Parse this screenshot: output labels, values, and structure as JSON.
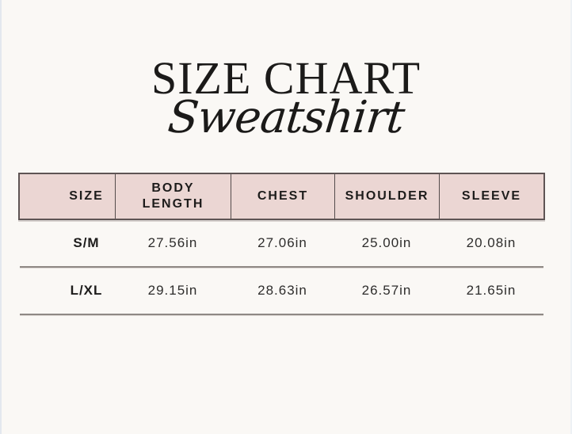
{
  "page": {
    "background": "#faf8f5"
  },
  "title": {
    "main": "SIZE CHART",
    "subtitle": "Sweatshirt"
  },
  "table": {
    "header_bg": "#ebd6d3",
    "border_color": "#5e5454",
    "headers": [
      "SIZE",
      "BODY LENGTH",
      "CHEST",
      "SHOULDER",
      "SLEEVE"
    ],
    "rows": [
      [
        "S/M",
        "27.56in",
        "27.06in",
        "25.00in",
        "20.08in"
      ],
      [
        "L/XL",
        "29.15in",
        "28.63in",
        "26.57in",
        "21.65in"
      ]
    ]
  },
  "chart_data": {
    "type": "table",
    "title": "SIZE CHART",
    "subtitle": "Sweatshirt",
    "columns": [
      "SIZE",
      "BODY LENGTH",
      "CHEST",
      "SHOULDER",
      "SLEEVE"
    ],
    "rows": [
      [
        "S/M",
        "27.56in",
        "27.06in",
        "25.00in",
        "20.08in"
      ],
      [
        "L/XL",
        "29.15in",
        "28.63in",
        "26.57in",
        "21.65in"
      ]
    ],
    "units": "in"
  }
}
